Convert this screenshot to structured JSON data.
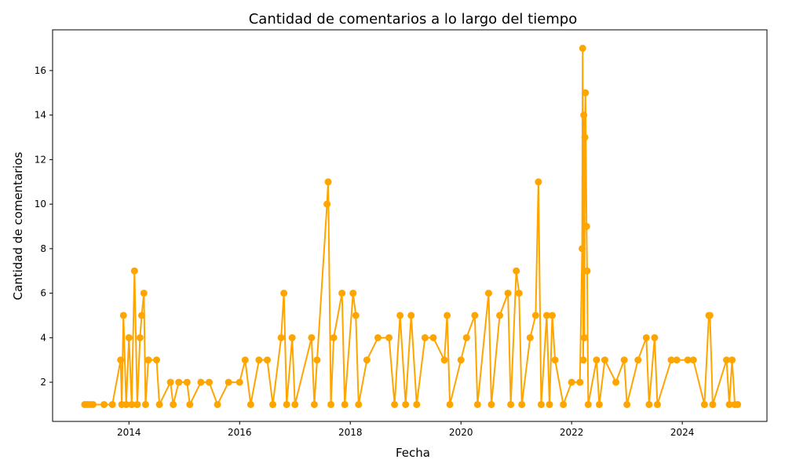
{
  "chart_data": {
    "type": "line",
    "title": "Cantidad de comentarios a lo largo del tiempo",
    "x_label": "Fecha",
    "y_label": "Cantidad de comentarios",
    "x": [
      2013.2,
      2013.25,
      2013.3,
      2013.35,
      2013.55,
      2013.7,
      2013.85,
      2013.87,
      2013.9,
      2013.95,
      2014.0,
      2014.05,
      2014.1,
      2014.15,
      2014.2,
      2014.23,
      2014.27,
      2014.3,
      2014.35,
      2014.5,
      2014.55,
      2014.75,
      2014.8,
      2014.9,
      2015.05,
      2015.1,
      2015.3,
      2015.45,
      2015.6,
      2015.8,
      2016.0,
      2016.1,
      2016.2,
      2016.35,
      2016.5,
      2016.6,
      2016.75,
      2016.8,
      2016.85,
      2016.95,
      2017.0,
      2017.3,
      2017.35,
      2017.4,
      2017.58,
      2017.6,
      2017.65,
      2017.7,
      2017.85,
      2017.9,
      2018.05,
      2018.1,
      2018.15,
      2018.3,
      2018.5,
      2018.7,
      2018.8,
      2018.9,
      2019.0,
      2019.1,
      2019.2,
      2019.35,
      2019.5,
      2019.7,
      2019.75,
      2019.8,
      2020.0,
      2020.1,
      2020.25,
      2020.3,
      2020.5,
      2020.55,
      2020.7,
      2020.85,
      2020.9,
      2021.0,
      2021.05,
      2021.1,
      2021.25,
      2021.35,
      2021.4,
      2021.45,
      2021.55,
      2021.6,
      2021.65,
      2021.7,
      2021.85,
      2022.0,
      2022.15,
      2022.19,
      2022.2,
      2022.21,
      2022.22,
      2022.23,
      2022.24,
      2022.25,
      2022.27,
      2022.28,
      2022.3,
      2022.45,
      2022.5,
      2022.6,
      2022.8,
      2022.95,
      2023.0,
      2023.2,
      2023.35,
      2023.4,
      2023.5,
      2023.55,
      2023.8,
      2023.9,
      2024.1,
      2024.2,
      2024.4,
      2024.48,
      2024.5,
      2024.55,
      2024.8,
      2024.85,
      2024.9,
      2024.95,
      2025.0
    ],
    "series": [
      {
        "color": "#ffa500",
        "values": [
          1,
          1,
          1,
          1,
          1,
          1,
          3,
          1,
          5,
          1,
          4,
          1,
          7,
          1,
          4,
          5,
          6,
          1,
          3,
          3,
          1,
          2,
          1,
          2,
          2,
          1,
          2,
          2,
          1,
          2,
          2,
          3,
          1,
          3,
          3,
          1,
          4,
          6,
          1,
          4,
          1,
          4,
          1,
          3,
          10,
          11,
          1,
          4,
          6,
          1,
          6,
          5,
          1,
          3,
          4,
          4,
          1,
          5,
          1,
          5,
          1,
          4,
          4,
          3,
          5,
          1,
          3,
          4,
          5,
          1,
          6,
          1,
          5,
          6,
          1,
          7,
          6,
          1,
          4,
          5,
          11,
          1,
          5,
          1,
          5,
          3,
          1,
          2,
          2,
          8,
          17,
          3,
          14,
          4,
          13,
          15,
          9,
          7,
          1,
          3,
          1,
          3,
          2,
          3,
          1,
          3,
          4,
          1,
          4,
          1,
          3,
          3,
          3,
          3,
          1,
          5,
          5,
          1,
          3,
          1,
          3,
          1,
          1
        ]
      }
    ],
    "xlim": [
      2012.62,
      2025.53
    ],
    "ylim": [
      0.24,
      17.83
    ],
    "xticks": [
      2014,
      2016,
      2018,
      2020,
      2022,
      2024
    ],
    "yticks": [
      2,
      4,
      6,
      8,
      10,
      12,
      14,
      16
    ]
  }
}
